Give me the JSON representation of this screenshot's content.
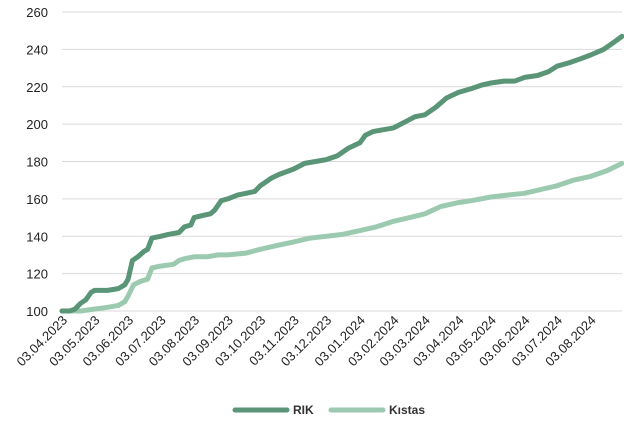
{
  "chart_data": {
    "type": "line",
    "title": "",
    "xlabel": "",
    "ylabel": "",
    "ylim": [
      100,
      260
    ],
    "yticks": [
      100,
      120,
      140,
      160,
      180,
      200,
      220,
      240,
      260
    ],
    "grid": "horizontal",
    "legend_position": "bottom",
    "categories": [
      "03.04.2023",
      "03.05.2023",
      "03.06.2023",
      "03.07.2023",
      "03.08.2023",
      "03.09.2023",
      "03.10.2023",
      "03.11.2023",
      "03.12.2023",
      "03.01.2024",
      "03.02.2024",
      "03.03.2024",
      "03.04.2024",
      "03.05.2024",
      "03.06.2024",
      "03.07.2024",
      "03.08.2024"
    ],
    "x_range": [
      "03.04.2023",
      "01.09.2024"
    ],
    "series": [
      {
        "name": "RIK",
        "color": "#5a9577",
        "points": [
          [
            "03.04.2023",
            100
          ],
          [
            "10.04.2023",
            100
          ],
          [
            "15.04.2023",
            101
          ],
          [
            "20.04.2023",
            104
          ],
          [
            "25.04.2023",
            106
          ],
          [
            "30.04.2023",
            110
          ],
          [
            "03.05.2023",
            111
          ],
          [
            "15.05.2023",
            111
          ],
          [
            "25.05.2023",
            112
          ],
          [
            "31.05.2023",
            114
          ],
          [
            "03.06.2023",
            117
          ],
          [
            "07.06.2023",
            127
          ],
          [
            "12.06.2023",
            129
          ],
          [
            "18.06.2023",
            132
          ],
          [
            "21.06.2023",
            133
          ],
          [
            "25.06.2023",
            139
          ],
          [
            "03.07.2023",
            140
          ],
          [
            "10.07.2023",
            141
          ],
          [
            "20.07.2023",
            142
          ],
          [
            "25.07.2023",
            145
          ],
          [
            "31.07.2023",
            146
          ],
          [
            "03.08.2023",
            150
          ],
          [
            "10.08.2023",
            151
          ],
          [
            "18.08.2023",
            152
          ],
          [
            "22.08.2023",
            154
          ],
          [
            "28.08.2023",
            159
          ],
          [
            "03.09.2023",
            160
          ],
          [
            "12.09.2023",
            162
          ],
          [
            "20.09.2023",
            163
          ],
          [
            "28.09.2023",
            164
          ],
          [
            "03.10.2023",
            167
          ],
          [
            "13.10.2023",
            171
          ],
          [
            "20.10.2023",
            173
          ],
          [
            "03.11.2023",
            176
          ],
          [
            "13.11.2023",
            179
          ],
          [
            "03.12.2023",
            181
          ],
          [
            "13.12.2023",
            183
          ],
          [
            "23.12.2023",
            187
          ],
          [
            "03.01.2024",
            190
          ],
          [
            "08.01.2024",
            194
          ],
          [
            "15.01.2024",
            196
          ],
          [
            "03.02.2024",
            198
          ],
          [
            "13.02.2024",
            201
          ],
          [
            "23.02.2024",
            204
          ],
          [
            "03.03.2024",
            205
          ],
          [
            "13.03.2024",
            209
          ],
          [
            "23.03.2024",
            214
          ],
          [
            "03.04.2024",
            217
          ],
          [
            "15.04.2024",
            219
          ],
          [
            "25.04.2024",
            221
          ],
          [
            "03.05.2024",
            222
          ],
          [
            "15.05.2024",
            223
          ],
          [
            "25.05.2024",
            223
          ],
          [
            "03.06.2024",
            225
          ],
          [
            "15.06.2024",
            226
          ],
          [
            "25.06.2024",
            228
          ],
          [
            "03.07.2024",
            231
          ],
          [
            "15.07.2024",
            233
          ],
          [
            "25.07.2024",
            235
          ],
          [
            "03.08.2024",
            237
          ],
          [
            "15.08.2024",
            240
          ],
          [
            "25.08.2024",
            244
          ],
          [
            "01.09.2024",
            247
          ]
        ]
      },
      {
        "name": "Kıstas",
        "color": "#9ccab1",
        "points": [
          [
            "03.04.2023",
            100
          ],
          [
            "20.04.2023",
            100
          ],
          [
            "03.05.2023",
            101
          ],
          [
            "15.05.2023",
            102
          ],
          [
            "25.05.2023",
            103
          ],
          [
            "31.05.2023",
            105
          ],
          [
            "03.06.2023",
            108
          ],
          [
            "08.06.2023",
            114
          ],
          [
            "15.06.2023",
            116
          ],
          [
            "21.06.2023",
            117
          ],
          [
            "25.06.2023",
            123
          ],
          [
            "03.07.2023",
            124
          ],
          [
            "15.07.2023",
            125
          ],
          [
            "20.07.2023",
            127
          ],
          [
            "25.07.2023",
            128
          ],
          [
            "03.08.2023",
            129
          ],
          [
            "15.08.2023",
            129
          ],
          [
            "25.08.2023",
            130
          ],
          [
            "03.09.2023",
            130
          ],
          [
            "20.09.2023",
            131
          ],
          [
            "03.10.2023",
            133
          ],
          [
            "18.10.2023",
            135
          ],
          [
            "03.11.2023",
            137
          ],
          [
            "18.11.2023",
            139
          ],
          [
            "03.12.2023",
            140
          ],
          [
            "18.12.2023",
            141
          ],
          [
            "03.01.2024",
            143
          ],
          [
            "18.01.2024",
            145
          ],
          [
            "03.02.2024",
            148
          ],
          [
            "18.02.2024",
            150
          ],
          [
            "03.03.2024",
            152
          ],
          [
            "18.03.2024",
            156
          ],
          [
            "03.04.2024",
            158
          ],
          [
            "15.04.2024",
            159
          ],
          [
            "03.05.2024",
            161
          ],
          [
            "18.05.2024",
            162
          ],
          [
            "03.06.2024",
            163
          ],
          [
            "18.06.2024",
            165
          ],
          [
            "03.07.2024",
            167
          ],
          [
            "18.07.2024",
            170
          ],
          [
            "03.08.2024",
            172
          ],
          [
            "18.08.2024",
            175
          ],
          [
            "01.09.2024",
            179
          ]
        ]
      }
    ]
  }
}
